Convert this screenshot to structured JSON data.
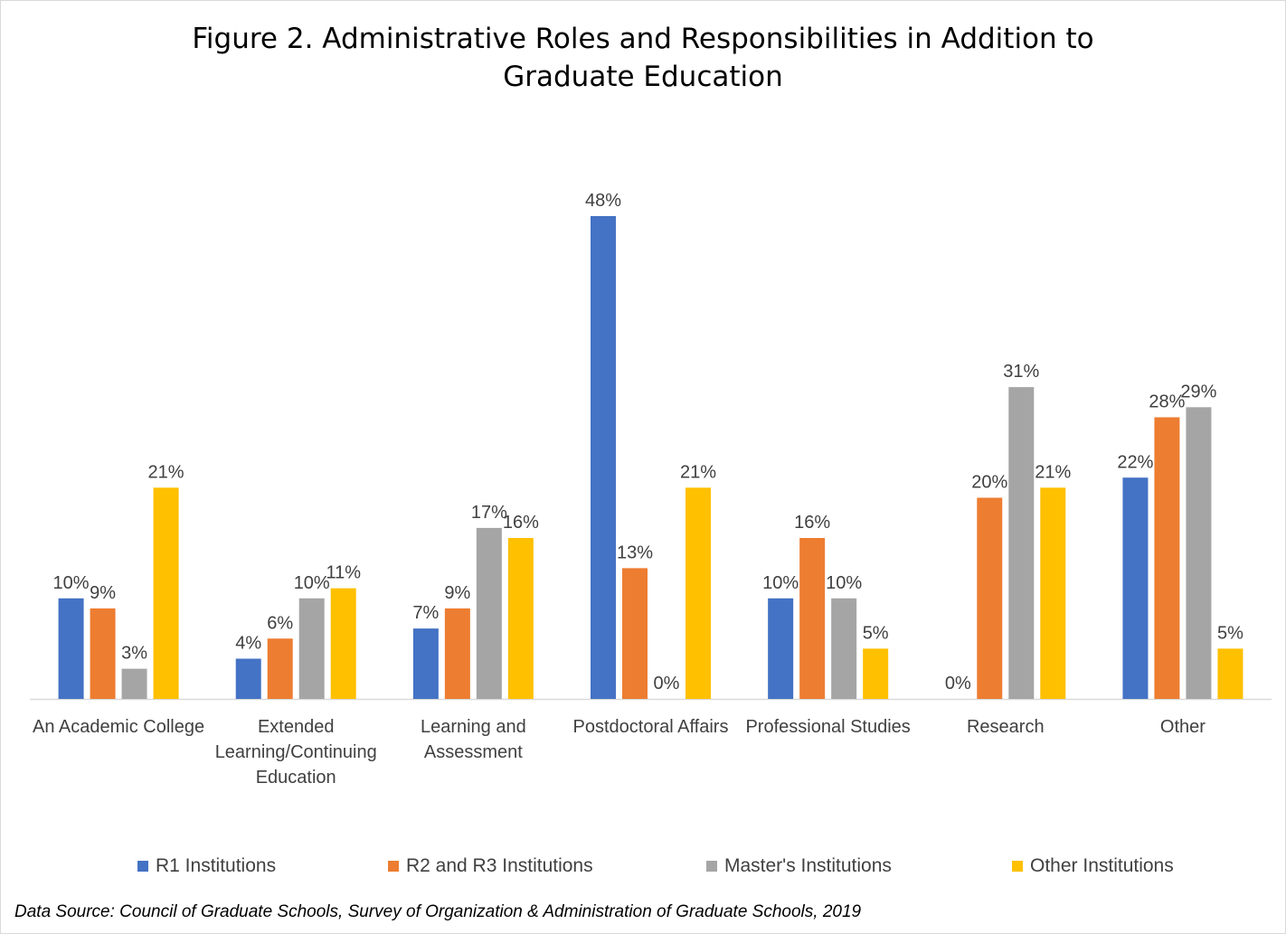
{
  "chart_data": {
    "type": "bar",
    "title_lines": [
      "Figure 2. Administrative Roles and Responsibilities in Addition to",
      "Graduate Education"
    ],
    "categories": [
      [
        "An Academic College"
      ],
      [
        "Extended",
        "Learning/Continuing",
        "Education"
      ],
      [
        "Learning and",
        "Assessment"
      ],
      [
        "Postdoctoral Affairs"
      ],
      [
        "Professional Studies"
      ],
      [
        "Research"
      ],
      [
        "Other"
      ]
    ],
    "series": [
      {
        "name": "R1 Institutions",
        "color": "#4472C4",
        "values": [
          10,
          4,
          7,
          48,
          10,
          0,
          22
        ]
      },
      {
        "name": "R2 and R3 Institutions",
        "color": "#ED7D31",
        "values": [
          9,
          6,
          9,
          13,
          16,
          20,
          28
        ]
      },
      {
        "name": "Master's Institutions",
        "color": "#A5A5A5",
        "values": [
          3,
          10,
          17,
          0,
          10,
          31,
          29
        ]
      },
      {
        "name": "Other Institutions",
        "color": "#FFC000",
        "values": [
          21,
          11,
          16,
          21,
          5,
          21,
          5
        ]
      }
    ],
    "value_suffix": "%",
    "ylim": [
      0,
      50
    ],
    "grid": false,
    "legend_position": "bottom"
  },
  "source": "Data Source: Council of Graduate Schools, Survey of Organization & Administration of Graduate Schools, 2019"
}
